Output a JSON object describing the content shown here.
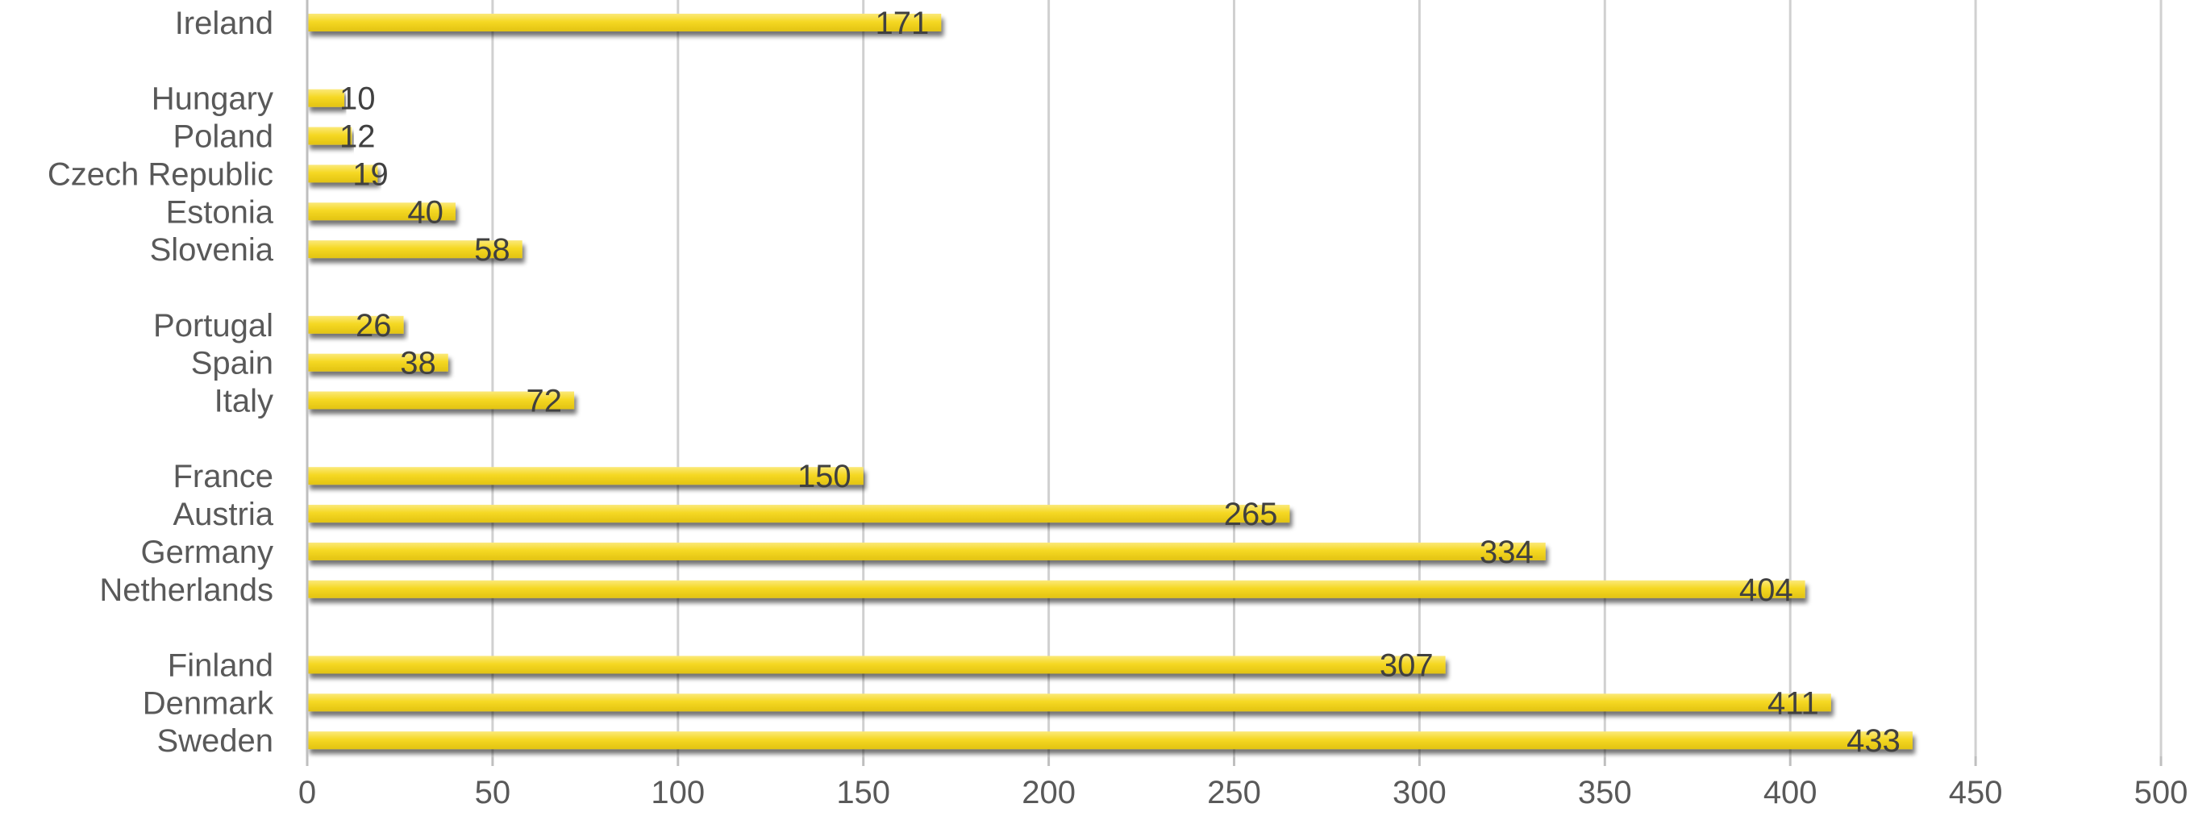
{
  "chart_data": {
    "type": "bar",
    "orientation": "horizontal",
    "title": "",
    "xlabel": "",
    "ylabel": "",
    "xlim": [
      0,
      500
    ],
    "x_ticks": [
      0,
      50,
      100,
      150,
      200,
      250,
      300,
      350,
      400,
      450,
      500
    ],
    "grid": "vertical",
    "legend": "none",
    "bar_color": "#F5D823",
    "bar_shadow_color": "#9a9a9a",
    "groups": [
      {
        "categories": [
          "Ireland"
        ],
        "values": [
          171
        ]
      },
      {
        "categories": [
          "Hungary",
          "Poland",
          "Czech Republic",
          "Estonia",
          "Slovenia"
        ],
        "values": [
          10,
          12,
          19,
          40,
          58
        ]
      },
      {
        "categories": [
          "Portugal",
          "Spain",
          "Italy"
        ],
        "values": [
          26,
          38,
          72
        ]
      },
      {
        "categories": [
          "France",
          "Austria",
          "Germany",
          "Netherlands"
        ],
        "values": [
          150,
          265,
          334,
          404
        ]
      },
      {
        "categories": [
          "Finland",
          "Denmark",
          "Sweden"
        ],
        "values": [
          307,
          411,
          433
        ]
      }
    ]
  }
}
